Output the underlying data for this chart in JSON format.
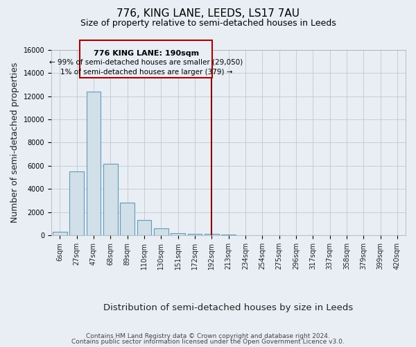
{
  "title": "776, KING LANE, LEEDS, LS17 7AU",
  "subtitle": "Size of property relative to semi-detached houses in Leeds",
  "xlabel": "Distribution of semi-detached houses by size in Leeds",
  "ylabel": "Number of semi-detached properties",
  "bar_labels": [
    "6sqm",
    "27sqm",
    "47sqm",
    "68sqm",
    "89sqm",
    "110sqm",
    "130sqm",
    "151sqm",
    "172sqm",
    "192sqm",
    "213sqm",
    "234sqm",
    "254sqm",
    "275sqm",
    "296sqm",
    "317sqm",
    "337sqm",
    "358sqm",
    "379sqm",
    "399sqm",
    "420sqm"
  ],
  "bar_heights": [
    300,
    5500,
    12400,
    6200,
    2800,
    1300,
    600,
    200,
    100,
    100,
    50,
    0,
    0,
    0,
    0,
    0,
    0,
    0,
    0,
    0,
    0
  ],
  "bar_color": "#d0dfe8",
  "bar_edge_color": "#6699bb",
  "annotation_box_text_line1": "776 KING LANE: 190sqm",
  "annotation_box_text_line2": "← 99% of semi-detached houses are smaller (29,050)",
  "annotation_box_text_line3": "1% of semi-detached houses are larger (379) →",
  "vline_color": "#880000",
  "annotation_box_edge_color": "#aa0000",
  "ylim": [
    0,
    16000
  ],
  "yticks": [
    0,
    2000,
    4000,
    6000,
    8000,
    10000,
    12000,
    14000,
    16000
  ],
  "footer_line1": "Contains HM Land Registry data © Crown copyright and database right 2024.",
  "footer_line2": "Contains public sector information licensed under the Open Government Licence v3.0.",
  "bg_color": "#e8eef4",
  "plot_bg_color": "#e8eef4",
  "title_fontsize": 11,
  "subtitle_fontsize": 9,
  "axis_label_fontsize": 9,
  "tick_fontsize": 7,
  "footer_fontsize": 6.5
}
